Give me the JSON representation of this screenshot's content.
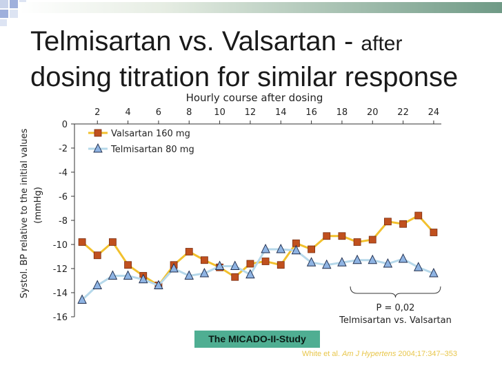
{
  "slide": {
    "title_main": "Telmisartan vs. Valsartan - ",
    "title_tail": "after",
    "title_line2": "dosing titration for similar response",
    "study_label": "The MICADO-II-Study",
    "citation_pre": "White et al. ",
    "citation_journal": "Am J Hypertens",
    "citation_post": " 2004;17:347–353"
  },
  "chart_data": {
    "type": "line",
    "xlabel": "Hourly course after dosing",
    "ylabel_line1": "Systol. BP relative to the initial values",
    "ylabel_line2": "(mmHg)",
    "x": [
      1,
      2,
      3,
      4,
      5,
      6,
      7,
      8,
      9,
      10,
      11,
      12,
      13,
      14,
      15,
      16,
      17,
      18,
      19,
      20,
      21,
      22,
      23,
      24
    ],
    "xticks": [
      2,
      4,
      6,
      8,
      10,
      12,
      14,
      16,
      18,
      20,
      22,
      24
    ],
    "xlim": [
      0.5,
      24.5
    ],
    "yticks": [
      0,
      -2,
      -4,
      -6,
      -8,
      -10,
      -12,
      -14,
      -16
    ],
    "ylim": [
      -16,
      0
    ],
    "legend_position": "top-left",
    "grid": false,
    "series": [
      {
        "name": "Valsartan 160 mg",
        "marker": "square",
        "line_color": "#f2c12e",
        "marker_color": "#c0501e",
        "values": [
          -9.8,
          -10.9,
          -9.8,
          -11.7,
          -12.6,
          -13.4,
          -11.7,
          -10.6,
          -11.3,
          -11.9,
          -12.7,
          -11.6,
          -11.4,
          -11.7,
          -9.9,
          -10.4,
          -9.3,
          -9.3,
          -9.8,
          -9.6,
          -8.1,
          -8.3,
          -7.6,
          -9.0
        ]
      },
      {
        "name": "Telmisartan 80 mg",
        "marker": "triangle",
        "line_color": "#b6d8ea",
        "marker_color": "#8fb4e3",
        "values": [
          -14.6,
          -13.4,
          -12.6,
          -12.6,
          -12.9,
          -13.4,
          -12.0,
          -12.6,
          -12.4,
          -11.8,
          -11.8,
          -12.5,
          -10.4,
          -10.4,
          -10.5,
          -11.5,
          -11.7,
          -11.5,
          -11.3,
          -11.3,
          -11.6,
          -11.2,
          -11.9,
          -12.4
        ]
      }
    ],
    "annotation": {
      "label_line1": "P = 0,02",
      "label_line2": "Telmisartan vs. Valsartan",
      "x_range": [
        19,
        24
      ]
    }
  }
}
